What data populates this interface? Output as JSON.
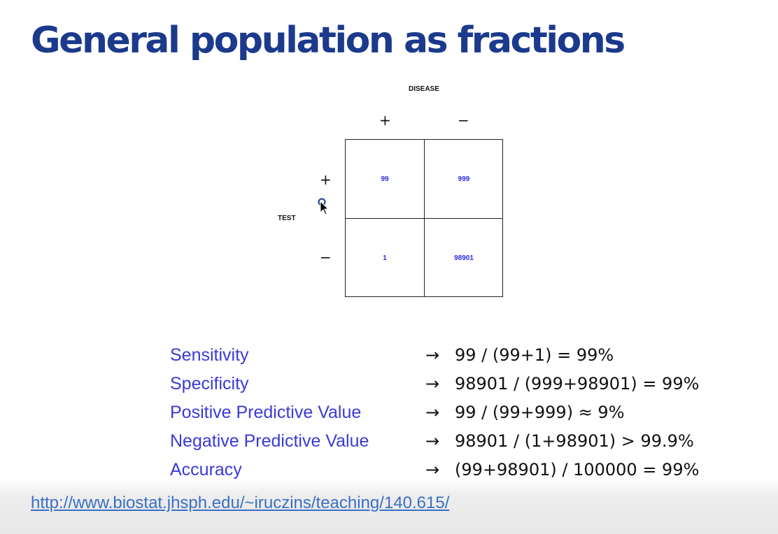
{
  "slide": {
    "title": "General population as fractions"
  },
  "table": {
    "column_header": "DISEASE",
    "row_header": "TEST",
    "col_signs": [
      "+",
      "−"
    ],
    "row_signs": [
      "+",
      "−"
    ],
    "cells": {
      "test_pos_disease_pos": "99",
      "test_pos_disease_neg": "999",
      "test_neg_disease_pos": "1",
      "test_neg_disease_neg": "98901"
    },
    "cell_color": "#2a2ae0"
  },
  "metrics": [
    {
      "label": "Sensitivity",
      "value": "99 / (99+1) = 99%"
    },
    {
      "label": "Specificity",
      "value": "98901 / (999+98901) = 99%"
    },
    {
      "label": "Positive Predictive Value",
      "value": "99 / (99+999) ≈ 9%"
    },
    {
      "label": "Negative Predictive Value",
      "value": "98901 / (1+98901) > 99.9%"
    },
    {
      "label": "Accuracy",
      "value": "(99+98901) / 100000 = 99%"
    }
  ],
  "arrow_symbol": "→",
  "footer": {
    "link": "http://www.biostat.jhsph.edu/~iruczins/teaching/140.615/"
  },
  "colors": {
    "title": "#1b3a8c",
    "metric_label": "#3a3ad8",
    "link": "#3a6fc4"
  }
}
